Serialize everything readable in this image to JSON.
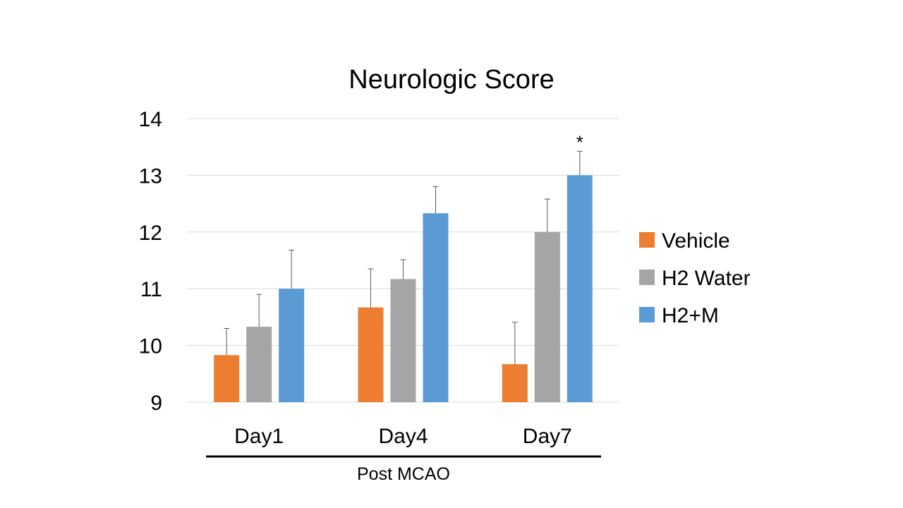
{
  "colors": {
    "Vehicle": "#ED7D31",
    "H2 Water": "#A5A5A5",
    "H2+M": "#5B9BD5",
    "gridline": "#D9D9D9",
    "errorbar": "#595959",
    "group_line": "#000000"
  },
  "chart_data": {
    "type": "bar",
    "title": "Neurologic Score",
    "categories": [
      "Day1",
      "Day4",
      "Day7"
    ],
    "group_label": "Post MCAO",
    "xlabel": "",
    "ylabel": "",
    "ylim": [
      9,
      14
    ],
    "yticks": [
      9,
      10,
      11,
      12,
      13,
      14
    ],
    "grid": true,
    "legend_position": "right",
    "series": [
      {
        "name": "Vehicle",
        "values": [
          9.83,
          10.67,
          9.67
        ],
        "errors": [
          0.47,
          0.68,
          0.74
        ]
      },
      {
        "name": "H2 Water",
        "values": [
          10.33,
          11.17,
          12.0
        ],
        "errors": [
          0.57,
          0.34,
          0.58
        ]
      },
      {
        "name": "H2+M",
        "values": [
          11.0,
          12.33,
          13.0
        ],
        "errors": [
          0.68,
          0.47,
          0.42
        ]
      }
    ],
    "annotations": [
      {
        "text": "*",
        "series": "H2+M",
        "category": "Day7"
      }
    ]
  }
}
